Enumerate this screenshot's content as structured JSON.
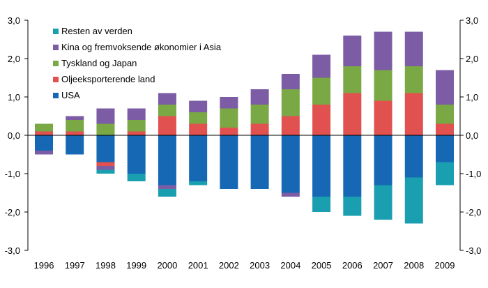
{
  "chart_data": {
    "type": "bar",
    "stacked": true,
    "categories": [
      "1996",
      "1997",
      "1998",
      "1999",
      "2000",
      "2001",
      "2002",
      "2003",
      "2004",
      "2005",
      "2006",
      "2007",
      "2008",
      "2009"
    ],
    "series": [
      {
        "name": "USA",
        "color": "#1668b4",
        "values": [
          -0.4,
          -0.5,
          -0.7,
          -1.0,
          -1.3,
          -1.2,
          -1.4,
          -1.4,
          -1.5,
          -1.6,
          -1.6,
          -1.3,
          -1.1,
          -0.7
        ]
      },
      {
        "name": "Oljeeksporterende land",
        "color": "#e0514f",
        "values": [
          0.1,
          0.1,
          -0.1,
          0.1,
          0.5,
          0.3,
          0.2,
          0.3,
          0.5,
          0.8,
          1.1,
          0.9,
          1.1,
          0.3
        ]
      },
      {
        "name": "Tyskland og Japan",
        "color": "#7aa845",
        "values": [
          0.2,
          0.3,
          0.3,
          0.3,
          0.3,
          0.3,
          0.5,
          0.5,
          0.7,
          0.7,
          0.7,
          0.8,
          0.7,
          0.5
        ]
      },
      {
        "name": "Kina og fremvoksende økonomier i Asia",
        "color": "#7c5ca4",
        "values": [
          0.0,
          0.1,
          0.4,
          0.3,
          0.3,
          0.3,
          0.3,
          0.4,
          0.4,
          0.6,
          0.8,
          1.0,
          0.9,
          0.9
        ]
      },
      {
        "name": "Kina og fremvoksende økonomier i Asia (negativ)",
        "color": "#7c5ca4",
        "values": [
          -0.1,
          0,
          -0.1,
          0,
          -0.1,
          0,
          0,
          0,
          -0.1,
          0,
          0,
          0,
          0,
          0
        ]
      },
      {
        "name": "Resten av verden",
        "color": "#1a9fb1",
        "values": [
          0,
          0,
          -0.1,
          -0.2,
          -0.2,
          -0.1,
          0,
          0,
          0,
          -0.4,
          -0.5,
          -0.9,
          -1.2,
          -0.6
        ]
      }
    ],
    "legend_order": [
      "Resten av verden",
      "Kina og fremvoksende økonomier i Asia",
      "Tyskland og Japan",
      "Oljeeksporterende land",
      "USA"
    ],
    "legend_position": "top-left",
    "ylim": [
      -3.0,
      3.0
    ],
    "yticks": [
      "3,0",
      "2,0",
      "1,0",
      "0,0",
      "-1,0",
      "-2,0",
      "-3,0"
    ],
    "ytick_values": [
      3,
      2,
      1,
      0,
      -1,
      -2,
      -3
    ],
    "grid": false,
    "title": "",
    "xlabel": "",
    "ylabel": ""
  }
}
